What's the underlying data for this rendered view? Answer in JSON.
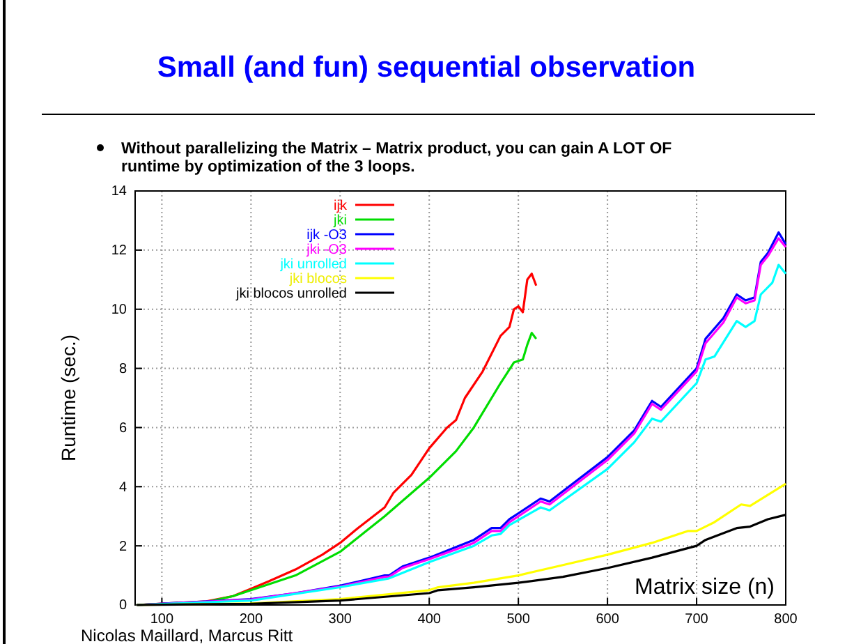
{
  "chart_data": {
    "type": "line",
    "title": "Small (and fun) sequential observation",
    "subtitle": "Without parallelizing the Matrix – Matrix product, you can gain A LOT OF runtime by optimization of the 3 loops.",
    "xlabel": "Matrix size (n)",
    "ylabel": "Runtime (sec.)",
    "annotations": [
      "Nicolas Maillard, Marcus Ritt"
    ],
    "xlim": [
      70,
      800
    ],
    "ylim": [
      0,
      14
    ],
    "xticks": [
      100,
      200,
      300,
      400,
      500,
      600,
      700,
      800
    ],
    "yticks": [
      0,
      2,
      4,
      6,
      8,
      10,
      12,
      14
    ],
    "grid": true,
    "legend": "top left",
    "line_style": "solid",
    "marker": "none",
    "series": [
      {
        "name": "ijk",
        "color": "#ff0000",
        "x": [
          72,
          150,
          180,
          200,
          220,
          250,
          280,
          300,
          320,
          350,
          360,
          380,
          400,
          420,
          430,
          440,
          460,
          480,
          490,
          495,
          500,
          505,
          510,
          515,
          520
        ],
        "values": [
          0,
          0.12,
          0.3,
          0.55,
          0.8,
          1.2,
          1.7,
          2.1,
          2.6,
          3.3,
          3.8,
          4.4,
          5.3,
          6.0,
          6.25,
          7.0,
          7.9,
          9.1,
          9.4,
          10.0,
          10.1,
          9.9,
          11.0,
          11.2,
          10.8
        ]
      },
      {
        "name": "jki",
        "color": "#00dd00",
        "x": [
          72,
          150,
          180,
          200,
          250,
          300,
          350,
          400,
          430,
          450,
          480,
          495,
          505,
          510,
          515,
          520
        ],
        "values": [
          0,
          0.1,
          0.3,
          0.5,
          1.0,
          1.8,
          3.0,
          4.3,
          5.2,
          6.0,
          7.5,
          8.2,
          8.3,
          8.8,
          9.2,
          9.0
        ]
      },
      {
        "name": "ijk -O3",
        "color": "#0000ff",
        "x": [
          72,
          200,
          250,
          300,
          350,
          355,
          370,
          400,
          450,
          470,
          480,
          490,
          500,
          520,
          525,
          535,
          550,
          600,
          630,
          650,
          660,
          700,
          710,
          730,
          745,
          755,
          765,
          772,
          780,
          792,
          800
        ],
        "values": [
          0,
          0.2,
          0.4,
          0.65,
          1.0,
          1.0,
          1.3,
          1.6,
          2.2,
          2.6,
          2.6,
          2.9,
          3.1,
          3.5,
          3.6,
          3.5,
          3.85,
          5.0,
          5.9,
          6.9,
          6.7,
          8.0,
          9.0,
          9.7,
          10.5,
          10.3,
          10.4,
          11.6,
          11.9,
          12.6,
          12.2
        ]
      },
      {
        "name": "jki -O3",
        "color": "#ff00ff",
        "x": [
          72,
          200,
          300,
          350,
          355,
          370,
          400,
          450,
          470,
          480,
          490,
          500,
          520,
          525,
          535,
          550,
          600,
          630,
          650,
          660,
          700,
          710,
          730,
          745,
          755,
          765,
          772,
          780,
          792,
          800
        ],
        "values": [
          0,
          0.18,
          0.62,
          0.95,
          0.95,
          1.25,
          1.55,
          2.1,
          2.5,
          2.5,
          2.8,
          3.0,
          3.4,
          3.5,
          3.4,
          3.75,
          4.9,
          5.8,
          6.8,
          6.6,
          7.9,
          8.85,
          9.55,
          10.4,
          10.2,
          10.3,
          11.5,
          11.8,
          12.4,
          12.1
        ]
      },
      {
        "name": "jki unrolled",
        "color": "#00ffff",
        "x": [
          72,
          200,
          300,
          355,
          400,
          450,
          470,
          480,
          490,
          525,
          535,
          600,
          630,
          650,
          660,
          700,
          710,
          720,
          745,
          755,
          765,
          772,
          785,
          792,
          800
        ],
        "values": [
          0,
          0.15,
          0.6,
          0.9,
          1.45,
          2.0,
          2.35,
          2.4,
          2.7,
          3.3,
          3.2,
          4.6,
          5.5,
          6.3,
          6.2,
          7.5,
          8.3,
          8.4,
          9.6,
          9.4,
          9.6,
          10.5,
          10.9,
          11.5,
          11.2
        ]
      },
      {
        "name": "jki blocos",
        "color": "#ffff00",
        "x": [
          72,
          200,
          300,
          400,
          410,
          450,
          500,
          550,
          600,
          650,
          690,
          700,
          720,
          750,
          760,
          800
        ],
        "values": [
          0,
          0.05,
          0.2,
          0.5,
          0.6,
          0.75,
          1.0,
          1.35,
          1.7,
          2.1,
          2.5,
          2.5,
          2.8,
          3.4,
          3.35,
          4.1
        ]
      },
      {
        "name": "jki blocos unrolled",
        "color": "#000000",
        "x": [
          72,
          200,
          300,
          400,
          410,
          450,
          500,
          550,
          600,
          650,
          700,
          710,
          745,
          760,
          780,
          800
        ],
        "values": [
          0,
          0.04,
          0.15,
          0.4,
          0.5,
          0.6,
          0.75,
          0.95,
          1.25,
          1.6,
          2.0,
          2.2,
          2.6,
          2.65,
          2.9,
          3.05
        ]
      }
    ]
  }
}
